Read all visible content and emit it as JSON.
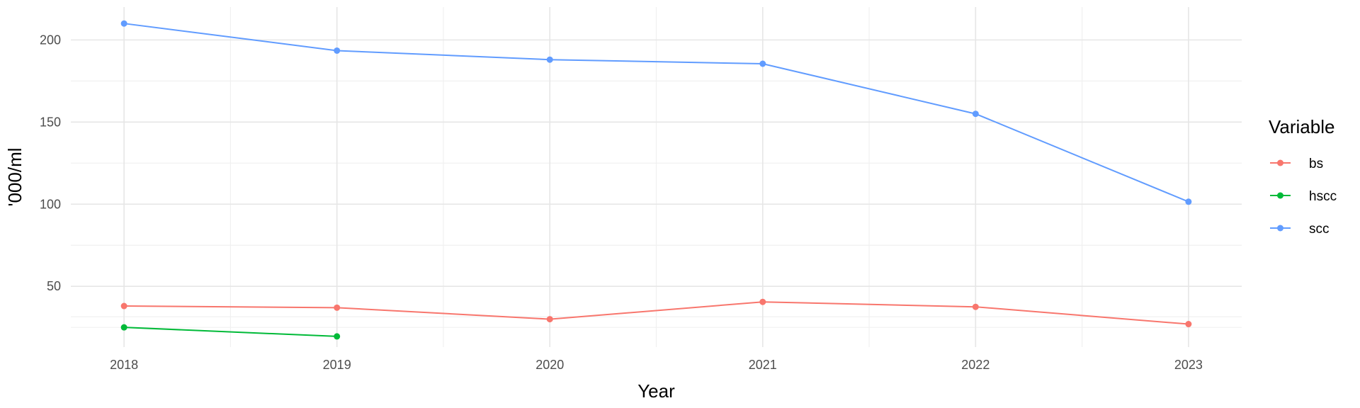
{
  "chart_data": {
    "type": "line",
    "xlabel": "Year",
    "ylabel": "'000/ml",
    "x": [
      2018,
      2019,
      2020,
      2021,
      2022,
      2023
    ],
    "xlim": [
      2017.75,
      2023.25
    ],
    "ylim": [
      13,
      220
    ],
    "yticks": [
      50,
      100,
      150,
      200
    ],
    "grid": true,
    "legend": {
      "title": "Variable",
      "placement": "right",
      "entries": [
        "bs",
        "hscc",
        "scc"
      ]
    },
    "series": [
      {
        "name": "bs",
        "color": "#F8766D",
        "values": [
          38,
          37,
          30,
          40.5,
          37.5,
          27
        ]
      },
      {
        "name": "hscc",
        "color": "#00BA38",
        "values": [
          25,
          19.5,
          null,
          null,
          null,
          null
        ]
      },
      {
        "name": "scc",
        "color": "#619CFF",
        "values": [
          210,
          193.5,
          188,
          185.5,
          155,
          101.5
        ]
      }
    ]
  }
}
